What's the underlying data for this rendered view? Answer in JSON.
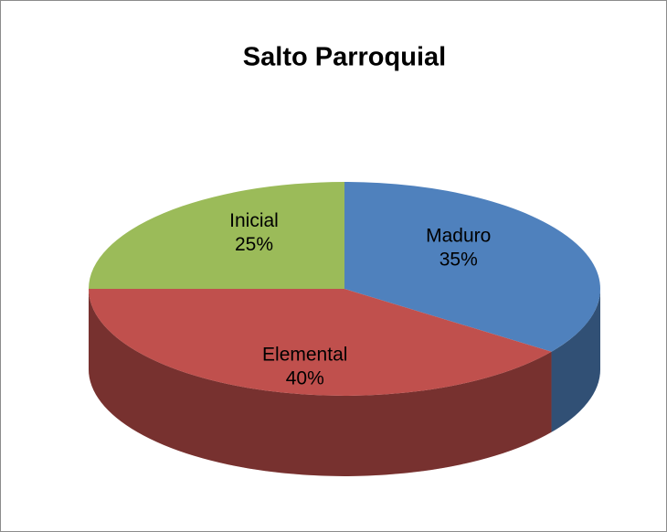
{
  "chart_data": {
    "type": "pie",
    "title": "Salto Parroquial",
    "categories": [
      "Maduro",
      "Elemental",
      "Inicial"
    ],
    "values": [
      35,
      40,
      25
    ],
    "value_labels": [
      "35%",
      "40%",
      "25%"
    ],
    "colors": [
      "#4f81bd",
      "#c0504d",
      "#9bbb59"
    ]
  }
}
